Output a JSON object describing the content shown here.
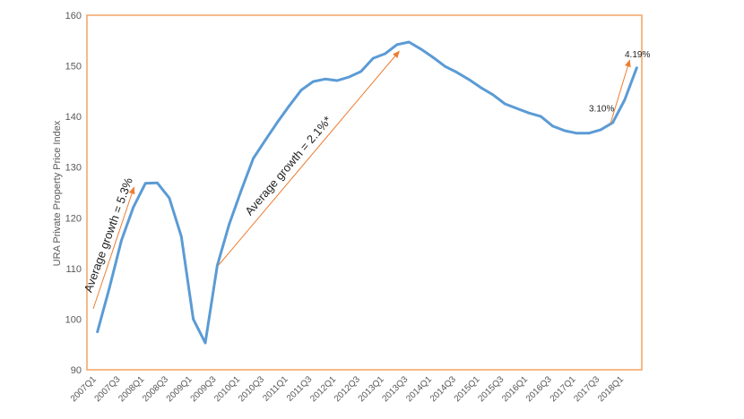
{
  "chart_data": {
    "type": "line",
    "ylabel": "URA Private Property Price Index",
    "ylim": [
      90,
      160
    ],
    "y_ticks": [
      90,
      100,
      110,
      120,
      130,
      140,
      150,
      160
    ],
    "grid": false,
    "legend": false,
    "categories": [
      "2007Q1",
      "",
      "2007Q3",
      "",
      "2008Q1",
      "",
      "2008Q3",
      "",
      "2009Q1",
      "",
      "2009Q3",
      "",
      "2010Q1",
      "",
      "2010Q3",
      "",
      "2011Q1",
      "",
      "2011Q3",
      "",
      "2012Q1",
      "",
      "2012Q3",
      "",
      "2013Q1",
      "",
      "2013Q3",
      "",
      "2014Q1",
      "",
      "2014Q3",
      "",
      "2015Q1",
      "",
      "2015Q3",
      "",
      "2016Q1",
      "",
      "2016Q3",
      "",
      "2017Q1",
      "",
      "2017Q3",
      "",
      "2018Q1",
      ""
    ],
    "series": [
      {
        "color": "#5B9BD5",
        "values": [
          97.5,
          106.2,
          115.5,
          122.1,
          126.8,
          126.9,
          123.9,
          116.3,
          100.0,
          95.3,
          110.6,
          118.8,
          125.4,
          131.7,
          135.3,
          138.8,
          142.1,
          145.2,
          146.9,
          147.4,
          147.1,
          147.8,
          148.9,
          151.5,
          152.4,
          154.2,
          154.7,
          153.3,
          151.7,
          149.9,
          148.7,
          147.3,
          145.7,
          144.3,
          142.5,
          141.6,
          140.7,
          140.0,
          138.1,
          137.2,
          136.7,
          136.7,
          137.4,
          138.8,
          143.3,
          149.6
        ]
      }
    ],
    "annotations": [
      {
        "text": "Average growth = 5.3%"
      },
      {
        "text": "Average growth = 2.1%*"
      },
      {
        "text": "3.10%"
      },
      {
        "text": "4.19%"
      }
    ]
  },
  "colors": {
    "series_line": "#5B9BD5",
    "annotation_arrow": "#ED7D31",
    "plot_border": "#F4A261",
    "axis_text": "#595959",
    "annotation_text": "#1F1F1F"
  }
}
